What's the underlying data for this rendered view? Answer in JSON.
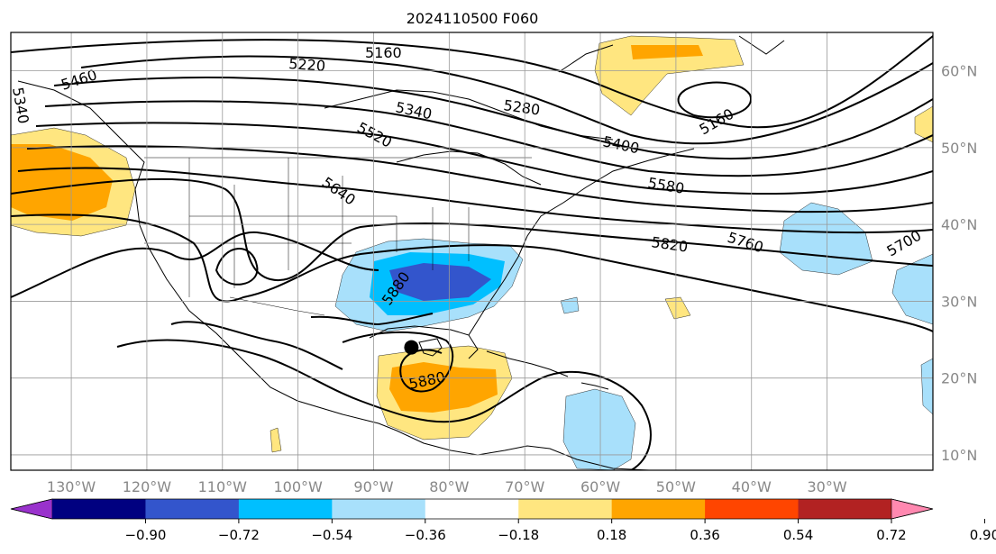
{
  "title": "2024110500 F060",
  "map": {
    "lon_range": [
      -138,
      -16
    ],
    "lat_range": [
      8,
      65
    ],
    "lon_ticks": [
      {
        "value": -130,
        "label": "130°W"
      },
      {
        "value": -120,
        "label": "120°W"
      },
      {
        "value": -110,
        "label": "110°W"
      },
      {
        "value": -100,
        "label": "100°W"
      },
      {
        "value": -90,
        "label": "90°W"
      },
      {
        "value": -80,
        "label": "80°W"
      },
      {
        "value": -70,
        "label": "70°W"
      },
      {
        "value": -60,
        "label": "60°W"
      },
      {
        "value": -50,
        "label": "50°W"
      },
      {
        "value": -40,
        "label": "40°W"
      },
      {
        "value": -30,
        "label": "30°W"
      }
    ],
    "lat_ticks": [
      {
        "value": 60,
        "label": "60°N"
      },
      {
        "value": 50,
        "label": "50°N"
      },
      {
        "value": 40,
        "label": "40°N"
      },
      {
        "value": 30,
        "label": "30°N"
      },
      {
        "value": 20,
        "label": "20°N"
      },
      {
        "value": 10,
        "label": "10°N"
      }
    ],
    "grid": true,
    "contour_labels": [
      "5160",
      "5220",
      "5280",
      "5340",
      "5400",
      "5460",
      "5520",
      "5580",
      "5640",
      "5700",
      "5760",
      "5820",
      "5880"
    ],
    "storm_marker": {
      "lon": -85,
      "lat": 24
    }
  },
  "colorbar": {
    "colors": [
      "#9932cc",
      "#000080",
      "#3355cc",
      "#00bfff",
      "#a8e0fb",
      "#ffffff",
      "#ffe680",
      "#ffa500",
      "#ff4500",
      "#b22222",
      "#ff88b0"
    ],
    "tick_labels": [
      "−0.90",
      "−0.72",
      "−0.54",
      "−0.36",
      "−0.18",
      "0.18",
      "0.36",
      "0.54",
      "0.72",
      "0.90"
    ],
    "extend": "both"
  }
}
